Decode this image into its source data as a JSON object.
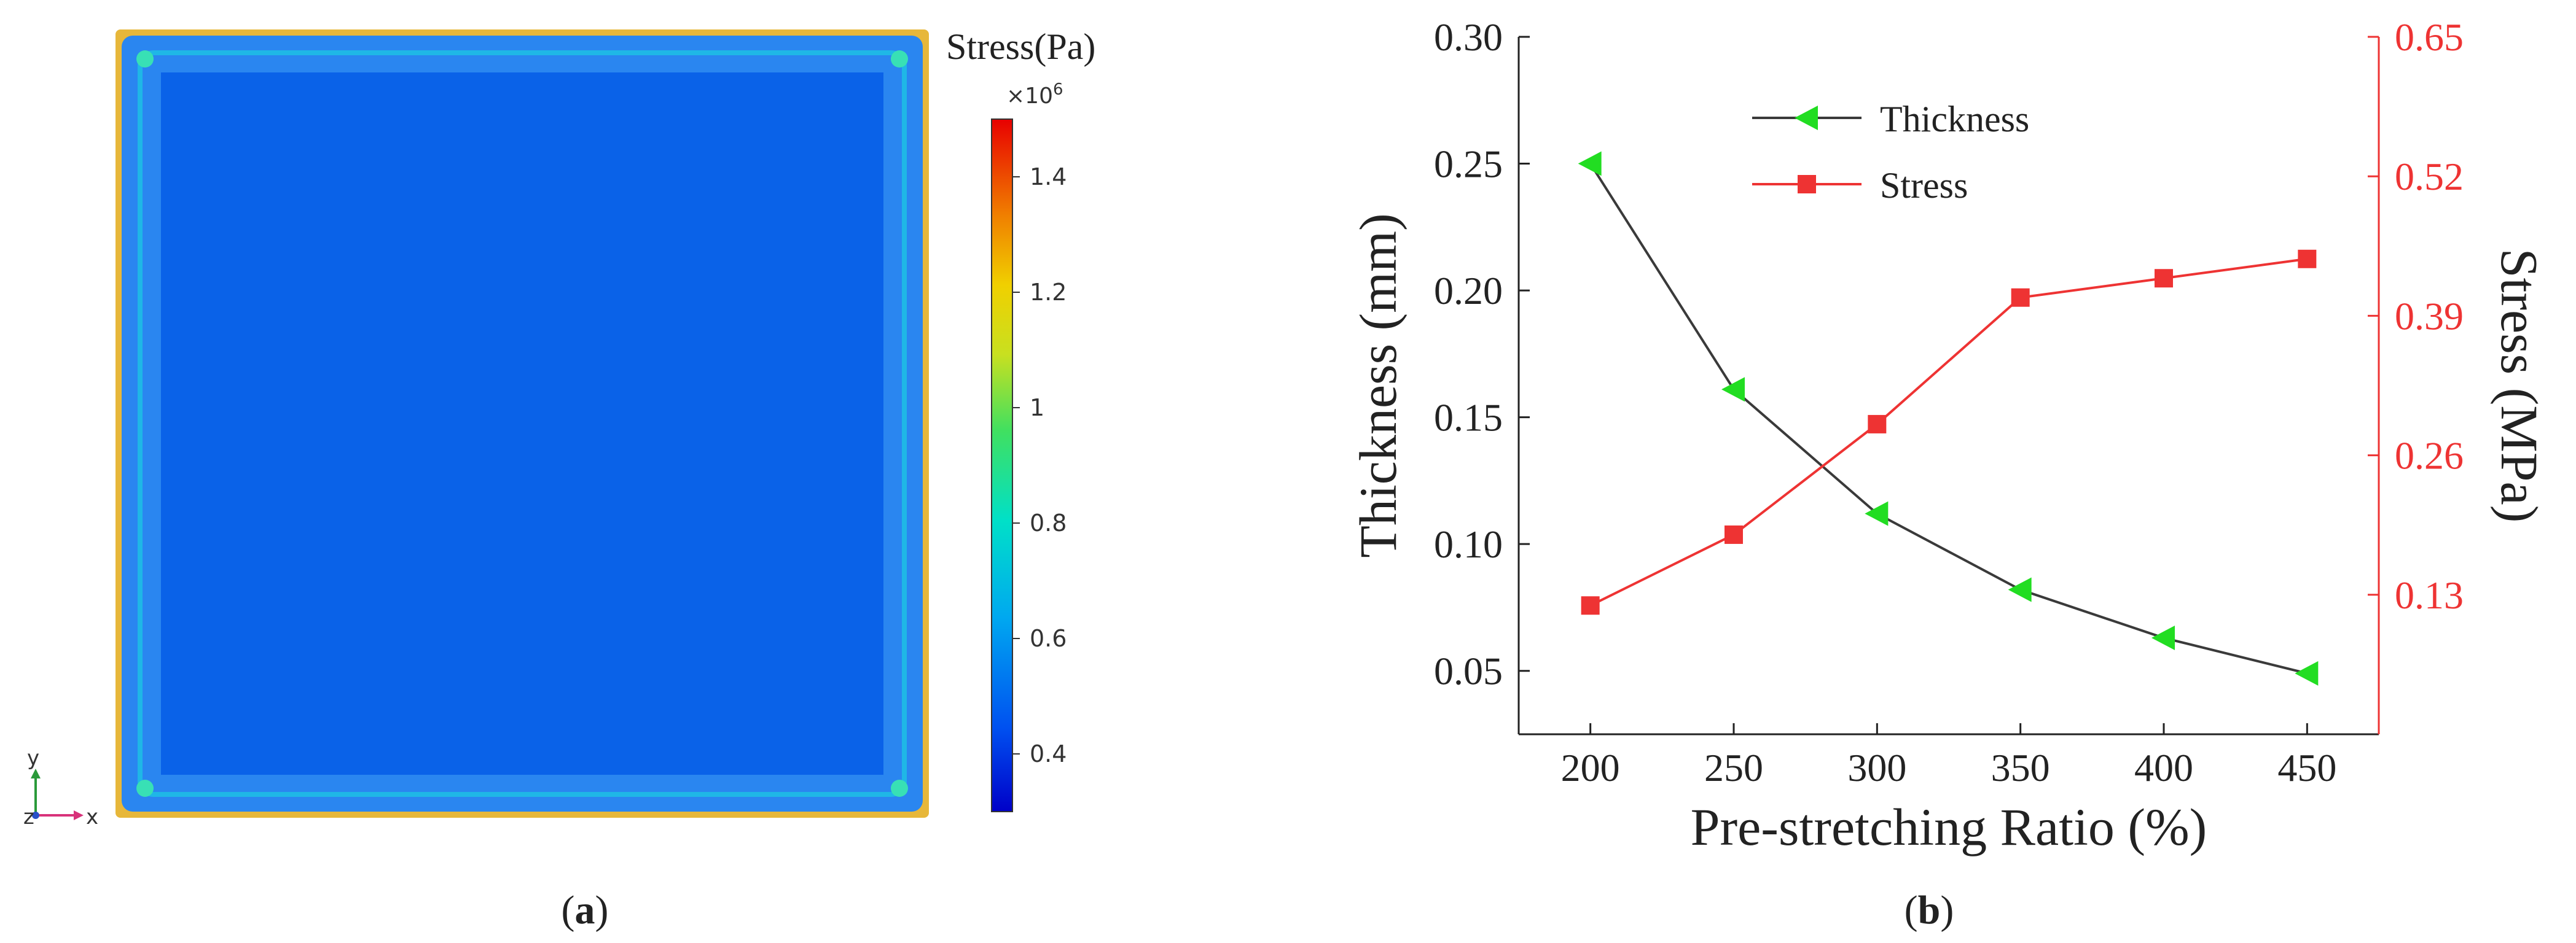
{
  "panel_a": {
    "label_open": "(",
    "label_letter": "a",
    "label_close": ")",
    "colorbar": {
      "title": "Stress(Pa)",
      "multiplier": "×10",
      "multiplier_exp": "6",
      "min": 0.3,
      "max": 1.5,
      "ticks": [
        {
          "value": 0.4,
          "label": "0.4"
        },
        {
          "value": 0.6,
          "label": "0.6"
        },
        {
          "value": 0.8,
          "label": "0.8"
        },
        {
          "value": 1.0,
          "label": "1"
        },
        {
          "value": 1.2,
          "label": "1.2"
        },
        {
          "value": 1.4,
          "label": "1.4"
        }
      ]
    },
    "axis_triad": {
      "y": "y",
      "z": "z",
      "x": "x"
    },
    "colors": {
      "field": "#0a62e8",
      "edge_band": "#2a86f0",
      "edge_light": "#1fb7e6",
      "outer_rim": "#e7b73a",
      "corner": "#38e0b5"
    }
  },
  "panel_b": {
    "label_open": "(",
    "label_letter": "b",
    "label_close": ")"
  },
  "chart_data": {
    "type": "line",
    "xlabel": "Pre-stretching Ratio (%)",
    "ylabel": "Thickness (mm)",
    "y2label": "Stress (MPa)",
    "x": [
      200,
      250,
      300,
      350,
      400,
      450
    ],
    "xlim": [
      175,
      475
    ],
    "xticks": [
      200,
      250,
      300,
      350,
      400,
      450
    ],
    "ylim": [
      0.025,
      0.3
    ],
    "yticks": [
      0.05,
      0.1,
      0.15,
      0.2,
      0.25,
      0.3
    ],
    "ytick_labels": [
      "0.05",
      "0.10",
      "0.15",
      "0.20",
      "0.25",
      "0.30"
    ],
    "y2lim": [
      0,
      0.65
    ],
    "y2ticks": [
      0.13,
      0.26,
      0.39,
      0.52,
      0.65
    ],
    "y2tick_labels": [
      "0.13",
      "0.26",
      "0.39",
      "0.52",
      "0.65"
    ],
    "legend_position": "top-center",
    "series": [
      {
        "name": "Thickness",
        "axis": "left",
        "marker": "triangle-left",
        "line_color": "#3a3a3a",
        "marker_color": "#22dd22",
        "values": [
          0.25,
          0.161,
          0.112,
          0.082,
          0.063,
          0.049
        ]
      },
      {
        "name": "Stress",
        "axis": "right",
        "marker": "square",
        "line_color": "#ee3333",
        "marker_color": "#ee3333",
        "values": [
          0.12,
          0.186,
          0.289,
          0.407,
          0.425,
          0.443
        ]
      }
    ],
    "colors": {
      "axis": "#222222",
      "right_axis": "#ee3333"
    }
  }
}
